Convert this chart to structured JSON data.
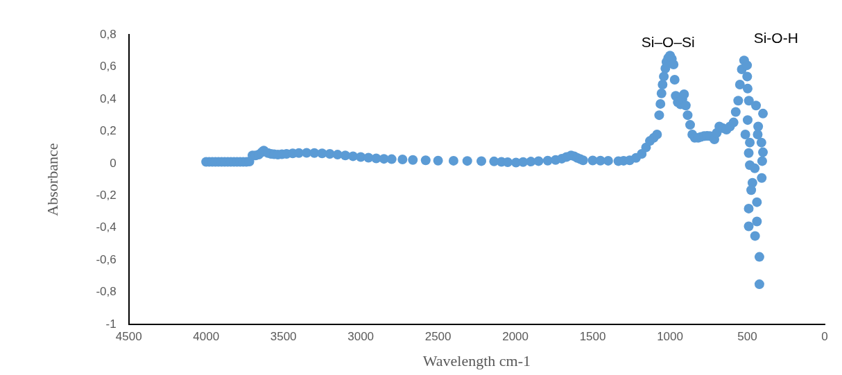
{
  "chart_data": {
    "type": "scatter",
    "xlabel": "Wavelength cm-1",
    "ylabel": "Absorbance",
    "marker": "circle",
    "grid": false,
    "xlim": [
      4500,
      0
    ],
    "xticks": [
      4500,
      4000,
      3500,
      3000,
      2500,
      2000,
      1500,
      1000,
      500,
      0
    ],
    "ylim": [
      -1,
      0.8
    ],
    "yticks": [
      {
        "value": -1,
        "label": "-1"
      },
      {
        "value": -0.8,
        "label": "-0,8"
      },
      {
        "value": -0.6,
        "label": "-0,6"
      },
      {
        "value": -0.4,
        "label": "-0,4"
      },
      {
        "value": -0.2,
        "label": "-0,2"
      },
      {
        "value": 0,
        "label": "0"
      },
      {
        "value": 0.2,
        "label": "0,2"
      },
      {
        "value": 0.4,
        "label": "0,4"
      },
      {
        "value": 0.6,
        "label": "0,6"
      },
      {
        "value": 0.8,
        "label": "0,8"
      }
    ],
    "annotations": [
      "Si–O–Si",
      "Si-O-H"
    ],
    "series": [
      {
        "color": "#5b9bd5",
        "x": [
          4000,
          3980,
          3960,
          3940,
          3920,
          3900,
          3880,
          3860,
          3840,
          3820,
          3800,
          3780,
          3760,
          3740,
          3720,
          3700,
          3680,
          3660,
          3640,
          3627,
          3600,
          3580,
          3560,
          3536,
          3510,
          3480,
          3440,
          3400,
          3350,
          3300,
          3250,
          3200,
          3150,
          3100,
          3050,
          3000,
          2950,
          2900,
          2850,
          2800,
          2730,
          2663,
          2580,
          2500,
          2400,
          2311,
          2220,
          2138,
          2090,
          2050,
          1996,
          1950,
          1900,
          1850,
          1791,
          1740,
          1700,
          1670,
          1640,
          1620,
          1600,
          1580,
          1562,
          1500,
          1450,
          1400,
          1334,
          1300,
          1261,
          1220,
          1183,
          1155,
          1130,
          1105,
          1084,
          1070,
          1062,
          1055,
          1048,
          1040,
          1030,
          1023,
          1012,
          1000,
          988,
          977,
          970,
          963,
          950,
          932,
          920,
          909,
          898,
          886,
          870,
          856,
          840,
          818,
          800,
          780,
          760,
          742,
          713,
          698,
          681,
          660,
          635,
          612,
          589,
          575,
          559,
          548,
          536,
          521,
          502,
          501,
          498,
          490,
          444,
          399,
          498,
          430,
          513,
          433,
          409,
          484,
          399,
          491,
          484,
          404,
          452,
          407,
          467,
          475,
          438,
          491,
          438,
          491,
          450,
          422,
          422
        ],
        "values": [
          0.01,
          0.01,
          0.01,
          0.01,
          0.01,
          0.01,
          0.01,
          0.01,
          0.01,
          0.01,
          0.01,
          0.01,
          0.01,
          0.01,
          0.012,
          0.05,
          0.05,
          0.055,
          0.07,
          0.08,
          0.065,
          0.06,
          0.057,
          0.055,
          0.057,
          0.06,
          0.063,
          0.065,
          0.066,
          0.065,
          0.063,
          0.06,
          0.055,
          0.05,
          0.045,
          0.04,
          0.036,
          0.032,
          0.029,
          0.027,
          0.025,
          0.022,
          0.02,
          0.018,
          0.017,
          0.016,
          0.015,
          0.013,
          0.01,
          0.008,
          0.006,
          0.009,
          0.012,
          0.015,
          0.018,
          0.022,
          0.03,
          0.04,
          0.05,
          0.045,
          0.035,
          0.027,
          0.02,
          0.019,
          0.018,
          0.017,
          0.015,
          0.017,
          0.02,
          0.035,
          0.06,
          0.1,
          0.14,
          0.16,
          0.18,
          0.3,
          0.37,
          0.435,
          0.49,
          0.54,
          0.59,
          0.63,
          0.655,
          0.67,
          0.65,
          0.615,
          0.52,
          0.42,
          0.38,
          0.367,
          0.4,
          0.43,
          0.36,
          0.3,
          0.24,
          0.18,
          0.16,
          0.16,
          0.165,
          0.17,
          0.172,
          0.17,
          0.15,
          0.19,
          0.23,
          0.22,
          0.21,
          0.23,
          0.255,
          0.32,
          0.39,
          0.49,
          0.585,
          0.64,
          0.61,
          0.54,
          0.465,
          0.39,
          0.36,
          0.31,
          0.27,
          0.23,
          0.18,
          0.18,
          0.13,
          0.13,
          0.07,
          0.065,
          -0.01,
          0.015,
          -0.03,
          -0.09,
          -0.12,
          -0.165,
          -0.24,
          -0.28,
          -0.36,
          -0.39,
          -0.45,
          -0.58,
          -0.75
        ]
      }
    ]
  }
}
